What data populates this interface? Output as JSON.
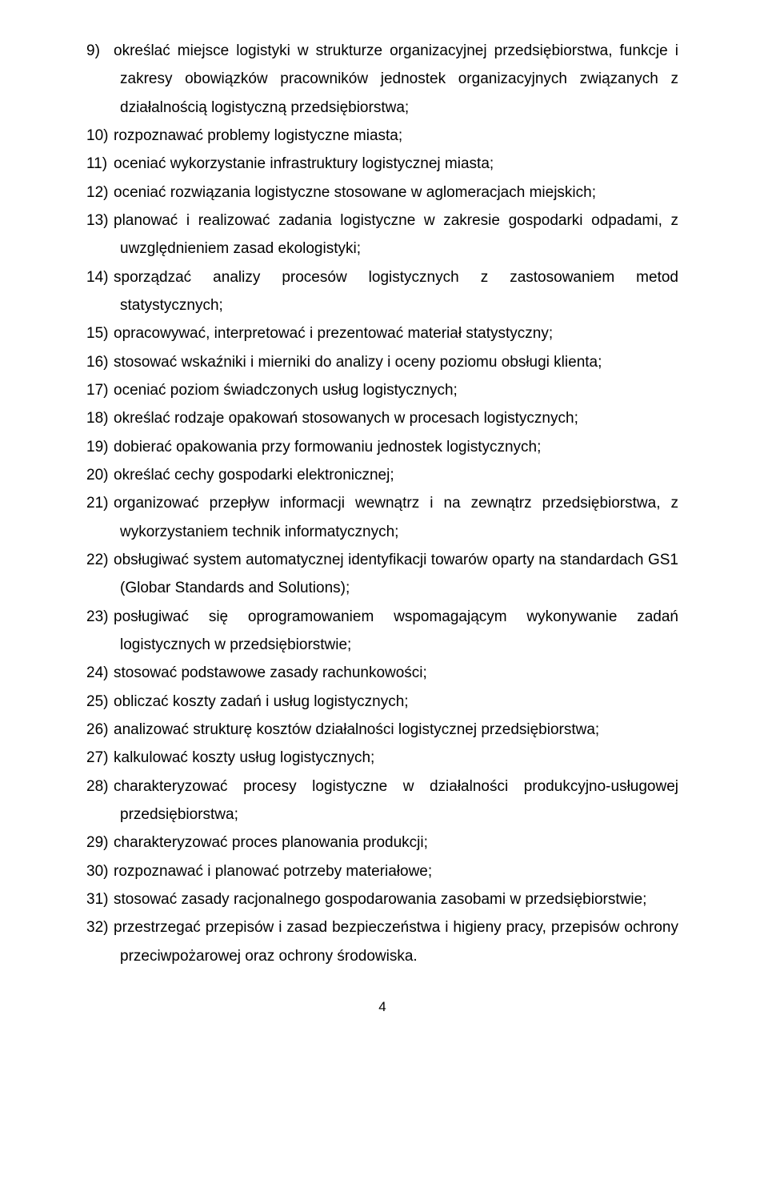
{
  "items": [
    "określać miejsce logistyki w strukturze organizacyjnej przedsiębiorstwa, funkcje i zakresy obowiązków pracowników jednostek organizacyjnych związanych z działalnością logistyczną przedsiębiorstwa;",
    "rozpoznawać problemy logistyczne miasta;",
    "oceniać wykorzystanie infrastruktury logistycznej miasta;",
    "oceniać rozwiązania logistyczne stosowane w aglomeracjach miejskich;",
    "planować i realizować zadania logistyczne w zakresie gospodarki odpadami, z uwzględnieniem zasad ekologistyki;",
    "sporządzać analizy procesów logistycznych z zastosowaniem metod statystycznych;",
    "opracowywać, interpretować i prezentować materiał statystyczny;",
    "stosować wskaźniki i mierniki do analizy i oceny poziomu obsługi klienta;",
    "oceniać poziom świadczonych usług logistycznych;",
    "określać rodzaje opakowań stosowanych w procesach logistycznych;",
    "dobierać opakowania przy formowaniu jednostek logistycznych;",
    "określać cechy gospodarki elektronicznej;",
    "organizować przepływ informacji wewnątrz i na zewnątrz przedsiębiorstwa, z wykorzystaniem technik informatycznych;",
    "obsługiwać system automatycznej identyfikacji towarów oparty na standardach GS1 (Globar Standards and Solutions);",
    "posługiwać się oprogramowaniem wspomagającym wykonywanie zadań logistycznych w przedsiębiorstwie;",
    "stosować podstawowe zasady rachunkowości;",
    "obliczać koszty zadań i usług logistycznych;",
    "analizować strukturę kosztów działalności logistycznej przedsiębiorstwa;",
    "kalkulować koszty usług logistycznych;",
    "charakteryzować procesy logistyczne w działalności produkcyjno-usługowej przedsiębiorstwa;",
    "charakteryzować proces planowania produkcji;",
    "rozpoznawać i planować potrzeby materiałowe;",
    "stosować zasady racjonalnego gospodarowania zasobami w przedsiębiorstwie;",
    "przestrzegać przepisów i zasad bezpieczeństwa i higieny pracy, przepisów ochrony przeciwpożarowej oraz ochrony środowiska."
  ],
  "page_number": "4"
}
